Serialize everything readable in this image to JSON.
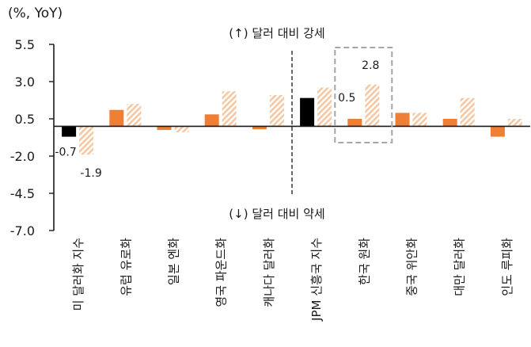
{
  "chart_data": {
    "type": "bar",
    "unit_label": "(%, YoY)",
    "ylim": [
      -7.0,
      5.5
    ],
    "yticks": [
      "5.5",
      "3.0",
      "0.5",
      "-2.0",
      "-4.5",
      "-7.0"
    ],
    "ytick_values": [
      5.5,
      3.0,
      0.5,
      -2.0,
      -4.5,
      -7.0
    ],
    "categories": [
      "미 달러화 지수",
      "유럽 유로화",
      "일본 엔화",
      "영국 파운드화",
      "캐나다 달러화",
      "JPM 신흥국 지수",
      "한국 원화",
      "중국 위안화",
      "대만 달러화",
      "인도 루피화"
    ],
    "series": [
      {
        "values": [
          -0.7,
          1.1,
          -0.25,
          0.8,
          -0.2,
          1.9,
          0.5,
          0.9,
          0.5,
          -0.7
        ],
        "color": "#ee7f35",
        "highlight_color": "#000000",
        "highlight_index": [
          0,
          5
        ],
        "pattern": "solid"
      },
      {
        "values": [
          -1.9,
          1.5,
          -0.4,
          2.35,
          2.1,
          2.6,
          2.8,
          0.9,
          1.9,
          0.5
        ],
        "color": "#f4c8a4",
        "pattern": "hatched"
      }
    ],
    "annotations": {
      "upper": "(↑) 달러 대비 강세",
      "lower": "(↓) 달러 대비 약세",
      "labels": [
        {
          "text": "-0.7",
          "category": 0,
          "series": 0
        },
        {
          "text": "-1.9",
          "category": 0,
          "series": 1
        },
        {
          "text": "0.5",
          "category": 6,
          "series": 0
        },
        {
          "text": "2.8",
          "category": 6,
          "series": 1
        }
      ],
      "highlight_box_category": 6,
      "divider_after_category": 4
    },
    "grid": false,
    "legend": "none"
  }
}
